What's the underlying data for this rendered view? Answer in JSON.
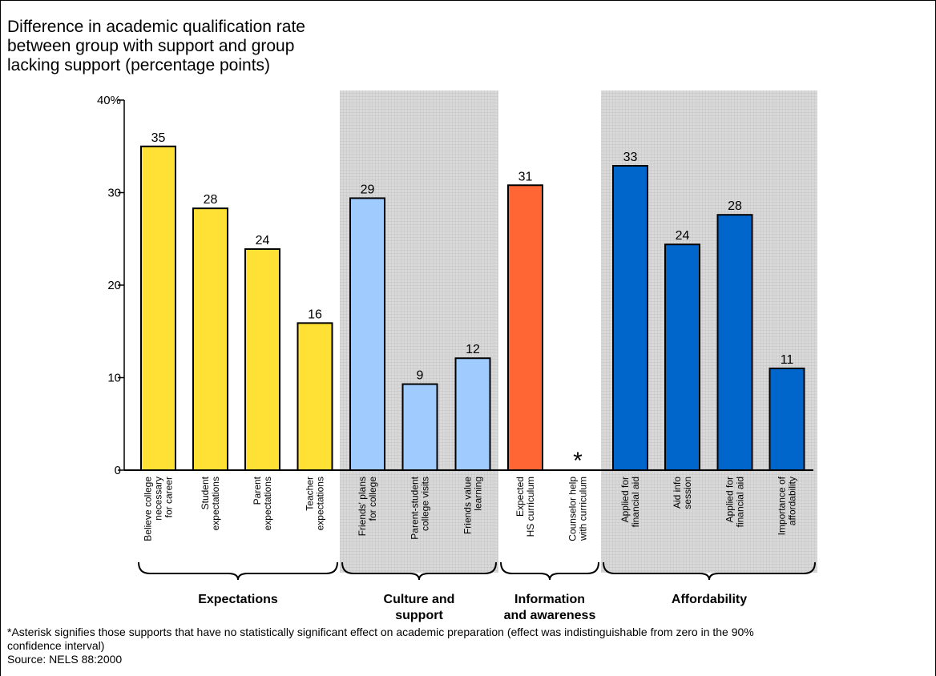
{
  "colors": {
    "expectations": "#FFE135",
    "culture": "#9FCBFF",
    "information": "#FF6633",
    "affordability": "#0066CC",
    "shade": "#D9D9D9",
    "grid": "#BDBDBD"
  },
  "chart_data": {
    "type": "bar",
    "title": "Difference in academic qualification rate\nbetween group with support and group\nlacking support (percentage points)",
    "ylim": [
      0,
      40
    ],
    "yticks": [
      "0",
      "10",
      "20",
      "30",
      "40%"
    ],
    "grid": "shaded background behind Culture and support and Affordability groups",
    "categories": [
      "Believe college necessary for career",
      "Student expectations",
      "Parent expectations",
      "Teacher expectations",
      "Friends' plans for college",
      "Parent-student college visits",
      "Friends value learning",
      "Expected HS curriculum",
      "Counselor help with curriculum",
      "Applied for financial aid",
      "Aid info session",
      "Applied for financial aid",
      "Importance of affordability"
    ],
    "category_lines": [
      [
        "Believe college",
        "necessary",
        "for career"
      ],
      [
        "Student",
        "expectations"
      ],
      [
        "Parent",
        "expectations"
      ],
      [
        "Teacher",
        "expectations"
      ],
      [
        "Friends' plans",
        "for college"
      ],
      [
        "Parent-student",
        "college visits"
      ],
      [
        "Friends value",
        "learning"
      ],
      [
        "Expected",
        "HS curriculum"
      ],
      [
        "Counselor help",
        "with curriculum"
      ],
      [
        "Applied for",
        "financial aid"
      ],
      [
        "Aid info",
        "session"
      ],
      [
        "Applied for",
        "financial aid"
      ],
      [
        "Importance of",
        "affordability"
      ]
    ],
    "values": [
      35,
      28.3,
      23.9,
      15.9,
      29.4,
      9.3,
      12.1,
      30.8,
      null,
      32.9,
      24.4,
      27.6,
      11
    ],
    "data_labels": [
      "35",
      "28",
      "24",
      "16",
      "29",
      "9",
      "12",
      "31",
      "*",
      "33",
      "24",
      "28",
      "11"
    ],
    "bar_groups": [
      0,
      0,
      0,
      0,
      1,
      1,
      1,
      2,
      2,
      3,
      3,
      3,
      3
    ],
    "groups": [
      {
        "label": "Expectations",
        "lines": [
          "Expectations"
        ],
        "color_key": "expectations",
        "shaded": false
      },
      {
        "label": "Culture and support",
        "lines": [
          "Culture and",
          "support"
        ],
        "color_key": "culture",
        "shaded": true
      },
      {
        "label": "Information and awareness",
        "lines": [
          "Information",
          "and awareness"
        ],
        "color_key": "information",
        "shaded": false
      },
      {
        "label": "Affordability",
        "lines": [
          "Affordability"
        ],
        "color_key": "affordability",
        "shaded": true
      }
    ]
  },
  "footnote": "*Asterisk signifies those supports that have no statistically significant effect on academic preparation (effect was indistinguishable from zero in the 90% confidence interval)",
  "source": "Source: NELS 88:2000"
}
